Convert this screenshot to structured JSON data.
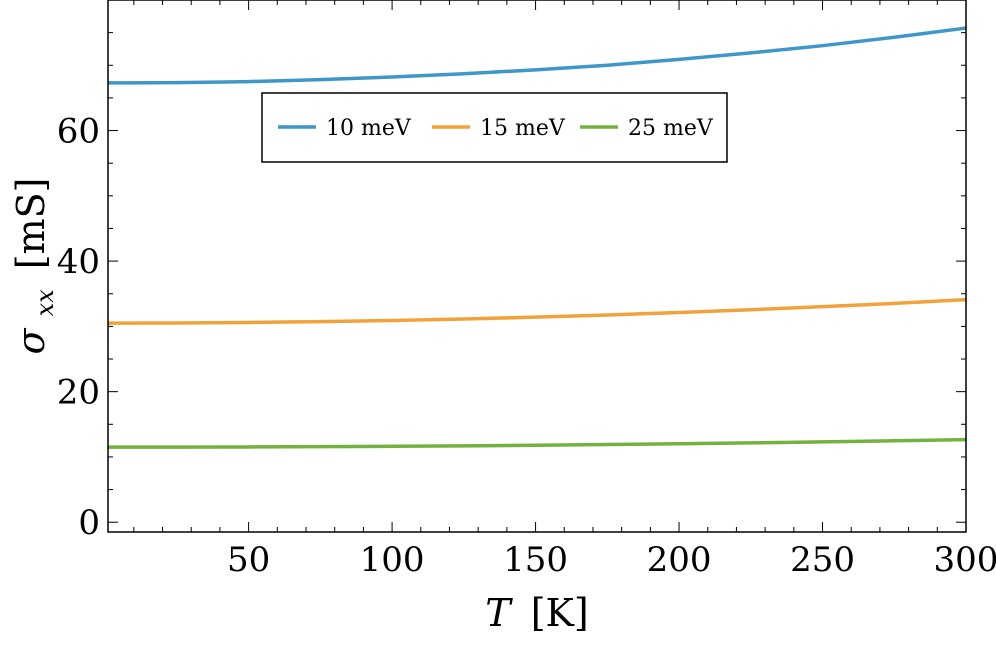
{
  "chart_data": {
    "type": "line",
    "title": "",
    "xlabel": {
      "symbol": "T",
      "unit": "[K]"
    },
    "ylabel": {
      "symbol": "σ",
      "subscript": "xx",
      "unit": "[mS]"
    },
    "xlim": [
      1,
      300
    ],
    "ylim": [
      -1.5,
      80
    ],
    "xticks": [
      50,
      100,
      150,
      200,
      250,
      300
    ],
    "yticks": [
      0,
      20,
      40,
      60
    ],
    "legend_position": "upper-center",
    "series": [
      {
        "name": "10 meV",
        "color": "#3f97c9",
        "x": [
          1,
          25,
          50,
          75,
          100,
          125,
          150,
          175,
          200,
          225,
          250,
          275,
          300
        ],
        "y": [
          67.3,
          67.35,
          67.5,
          67.8,
          68.2,
          68.7,
          69.3,
          70.0,
          70.9,
          71.9,
          73.0,
          74.3,
          75.7
        ]
      },
      {
        "name": "15 meV",
        "color": "#f2a23a",
        "x": [
          1,
          25,
          50,
          75,
          100,
          125,
          150,
          175,
          200,
          225,
          250,
          275,
          300
        ],
        "y": [
          30.5,
          30.52,
          30.6,
          30.72,
          30.9,
          31.13,
          31.42,
          31.75,
          32.13,
          32.55,
          33.02,
          33.52,
          34.1
        ]
      },
      {
        "name": "25 meV",
        "color": "#74b23f",
        "x": [
          1,
          25,
          50,
          75,
          100,
          125,
          150,
          175,
          200,
          225,
          250,
          275,
          300
        ],
        "y": [
          11.5,
          11.51,
          11.53,
          11.57,
          11.63,
          11.7,
          11.79,
          11.9,
          12.02,
          12.15,
          12.3,
          12.47,
          12.66
        ]
      }
    ]
  }
}
